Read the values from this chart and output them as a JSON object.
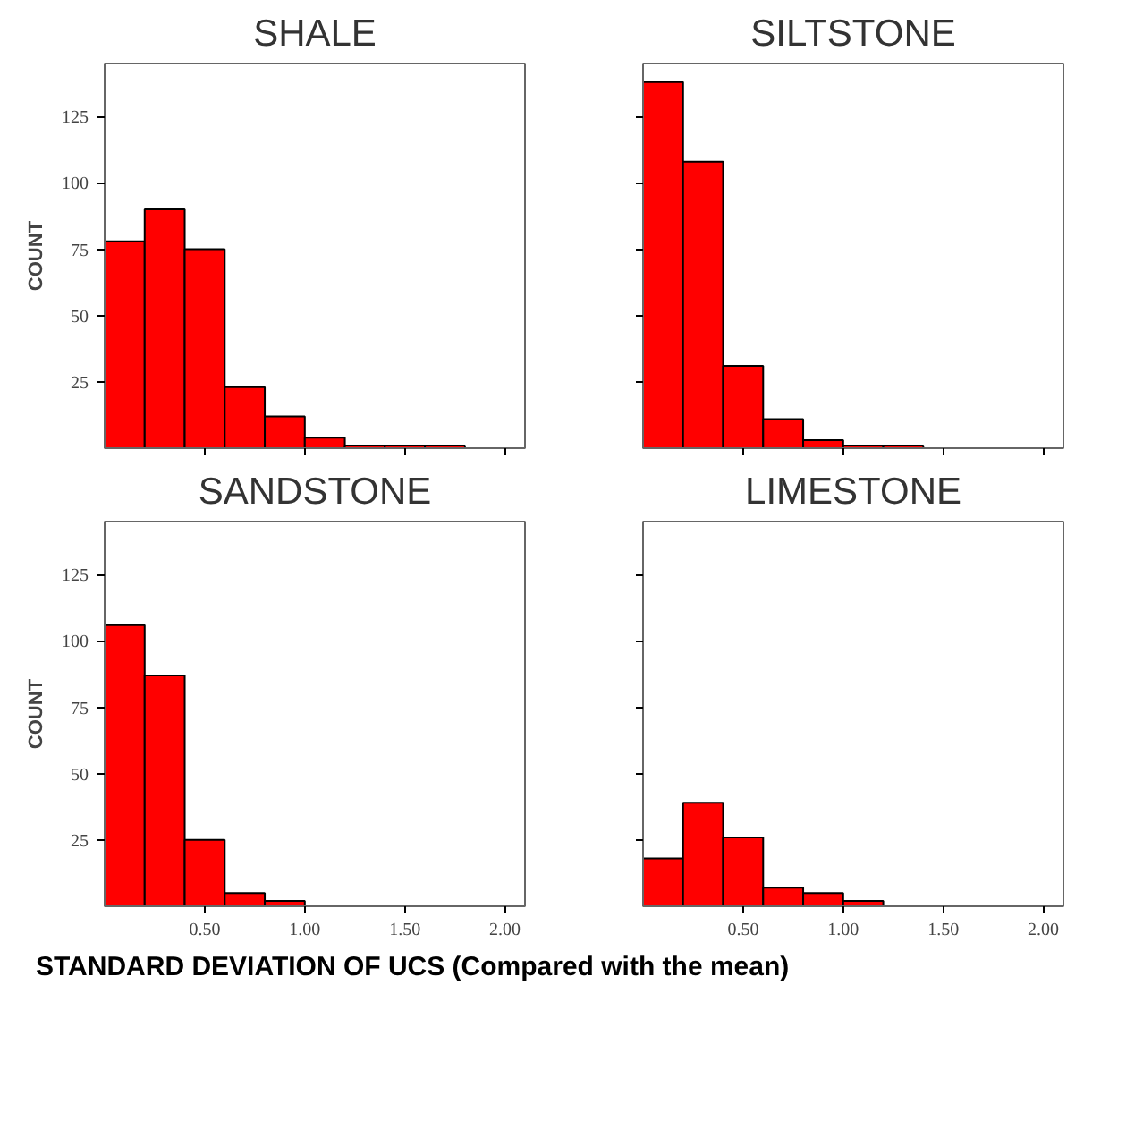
{
  "chart_data": [
    {
      "type": "histogram",
      "title": "SHALE",
      "ylabel": "COUNT",
      "bins": [
        0,
        0.2,
        0.4,
        0.6,
        0.8,
        1.0,
        1.2,
        1.4,
        1.6,
        1.8
      ],
      "values": [
        78,
        90,
        75,
        23,
        12,
        4,
        1,
        1,
        1
      ],
      "color": "#ff0000",
      "xlim": [
        0,
        2.1
      ],
      "ylim": [
        0,
        145
      ],
      "xticks": [
        {
          "value": 0.5,
          "label": null
        },
        {
          "value": 1.0,
          "label": null
        },
        {
          "value": 1.5,
          "label": null
        },
        {
          "value": 2.0,
          "label": null
        }
      ],
      "yticks": [
        25,
        50,
        75,
        100,
        125
      ],
      "tick_labels": "y",
      "grid": false
    },
    {
      "type": "histogram",
      "title": "SILTSTONE",
      "bins": [
        0,
        0.2,
        0.4,
        0.6,
        0.8,
        1.0,
        1.2,
        1.4
      ],
      "values": [
        138,
        108,
        31,
        11,
        3,
        1,
        1
      ],
      "color": "#ff0000",
      "xlim": [
        0,
        2.1
      ],
      "ylim": [
        0,
        145
      ],
      "xticks": [
        {
          "value": 0.5,
          "label": null
        },
        {
          "value": 1.0,
          "label": null
        },
        {
          "value": 1.5,
          "label": null
        },
        {
          "value": 2.0,
          "label": null
        }
      ],
      "yticks": [
        25,
        50,
        75,
        100,
        125
      ],
      "tick_labels": false,
      "grid": false
    },
    {
      "type": "histogram",
      "title": "SANDSTONE",
      "ylabel": "COUNT",
      "xlabel": "STANDARD DEVIATION OF UCS (Compared with the mean)",
      "bins": [
        0,
        0.2,
        0.4,
        0.6,
        0.8,
        1.0
      ],
      "values": [
        106,
        87,
        25,
        5,
        2
      ],
      "color": "#ff0000",
      "xlim": [
        0,
        2.1
      ],
      "ylim": [
        0,
        145
      ],
      "xticks": [
        {
          "value": 0.5,
          "label": "0.50"
        },
        {
          "value": 1.0,
          "label": "1.00"
        },
        {
          "value": 1.5,
          "label": "1.50"
        },
        {
          "value": 2.0,
          "label": "2.00"
        }
      ],
      "yticks": [
        25,
        50,
        75,
        100,
        125
      ],
      "grid": false
    },
    {
      "type": "histogram",
      "title": "LIMESTONE",
      "bins": [
        0,
        0.2,
        0.4,
        0.6,
        0.8,
        1.0,
        1.2
      ],
      "values": [
        18,
        39,
        26,
        7,
        5,
        2
      ],
      "color": "#ff0000",
      "xlim": [
        0,
        2.1
      ],
      "ylim": [
        0,
        145
      ],
      "xticks": [
        {
          "value": 0.5,
          "label": "0.50"
        },
        {
          "value": 1.0,
          "label": "1.00"
        },
        {
          "value": 1.5,
          "label": "1.50"
        },
        {
          "value": 2.0,
          "label": "2.00"
        }
      ],
      "yticks": [
        25,
        50,
        75,
        100,
        125
      ],
      "tick_labels": "x",
      "grid": false
    }
  ]
}
